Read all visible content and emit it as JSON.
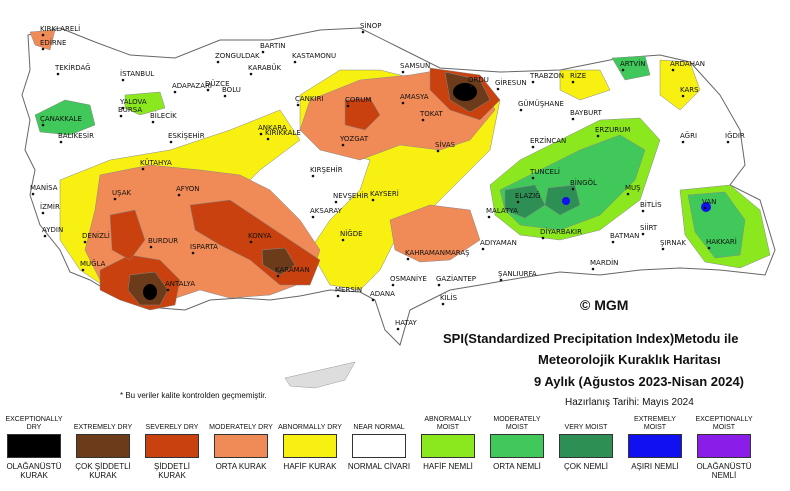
{
  "title": {
    "line1": "SPI(Standardized Precipitation Index)Metodu ile",
    "line2": "Meteorolojik Kuraklık Haritası",
    "line3": "9 Aylık (Ağustos 2023-Nisan 2024)",
    "prepared": "Hazırlanış Tarihi: Mayıs 2024"
  },
  "note": "* Bu veriler kalite kontrolden geçmemiştir.",
  "logo_text": "© MGM",
  "legend": [
    {
      "en": "EXCEPTIONALLY DRY",
      "tr": "OLAĞANÜSTÜ KURAK",
      "color": "#000000"
    },
    {
      "en": "EXTREMELY DRY",
      "tr": "ÇOK ŞİDDETLİ KURAK",
      "color": "#6b3b1a"
    },
    {
      "en": "SEVERELY DRY",
      "tr": "ŞİDDETLİ KURAK",
      "color": "#c8410f"
    },
    {
      "en": "MODERATELY DRY",
      "tr": "ORTA KURAK",
      "color": "#f08a57"
    },
    {
      "en": "ABNORMALLY DRY",
      "tr": "HAFİF KURAK",
      "color": "#f7f011"
    },
    {
      "en": "NEAR NORMAL",
      "tr": "NORMAL CİVARI",
      "color": "#ffffff"
    },
    {
      "en": "ABNORMALLY MOIST",
      "tr": "HAFİF NEMLİ",
      "color": "#8be81e"
    },
    {
      "en": "MODERATELY MOIST",
      "tr": "ORTA NEMLİ",
      "color": "#40c85a"
    },
    {
      "en": "VERY MOIST",
      "tr": "ÇOK NEMLİ",
      "color": "#2e8f55"
    },
    {
      "en": "EXTREMELY MOIST",
      "tr": "AŞIRI NEMLİ",
      "color": "#1010f0"
    },
    {
      "en": "EXCEPTIONALLY MOIST",
      "tr": "OLAĞANÜSTÜ NEMLİ",
      "color": "#8a1ee8"
    }
  ],
  "cities": [
    "KIRKLARELİ",
    "EDİRNE",
    "TEKİRDAĞ",
    "İSTANBUL",
    "ÇANAKKALE",
    "BALIKESİR",
    "BURSA",
    "YALOVA",
    "BİLECİK",
    "ADAPAZARI",
    "DÜZCE",
    "BOLU",
    "ZONGULDAK",
    "BARTIN",
    "KARABÜK",
    "KASTAMONU",
    "SİNOP",
    "SAMSUN",
    "ORDU",
    "GİRESUN",
    "TRABZON",
    "RİZE",
    "ARTVİN",
    "ARDAHAN",
    "KARS",
    "IĞDIR",
    "AĞRI",
    "ERZURUM",
    "BAYBURT",
    "GÜMÜŞHANE",
    "ERZİNCAN",
    "TUNCELİ",
    "BİNGÖL",
    "MUŞ",
    "BİTLİS",
    "VAN",
    "HAKKARİ",
    "ŞIRNAK",
    "SİİRT",
    "BATMAN",
    "MARDİN",
    "DİYARBAKIR",
    "ELAZIĞ",
    "MALATYA",
    "ADIYAMAN",
    "ŞANLIURFA",
    "GAZİANTEP",
    "KİLİS",
    "OSMANİYE",
    "KAHRAMANMARAŞ",
    "ADANA",
    "HATAY",
    "MERSİN",
    "KARAMAN",
    "KONYA",
    "NİĞDE",
    "AKSARAY",
    "NEVŞEHİR",
    "KAYSERİ",
    "KIRŞEHİR",
    "YOZGAT",
    "SİVAS",
    "TOKAT",
    "AMASYA",
    "ÇORUM",
    "ÇANKIRI",
    "KIRIKKALE",
    "ANKARA",
    "ESKİŞEHİR",
    "KÜTAHYA",
    "AFYON",
    "UŞAK",
    "MANİSA",
    "İZMİR",
    "AYDIN",
    "DENİZLİ",
    "MUĞLA",
    "BURDUR",
    "ISPARTA",
    "ANTALYA"
  ]
}
